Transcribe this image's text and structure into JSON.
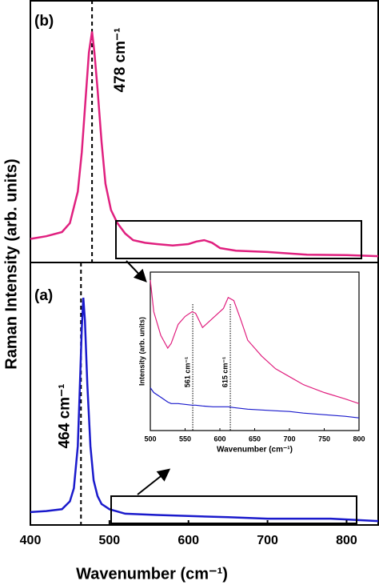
{
  "chart_data": [
    {
      "type": "line",
      "panel_label": "(b)",
      "x": [
        400,
        420,
        440,
        450,
        460,
        465,
        470,
        474,
        478,
        481,
        485,
        490,
        495,
        502,
        510,
        520,
        530,
        545,
        560,
        580,
        600,
        610,
        620,
        630,
        640,
        660,
        700,
        750,
        800,
        840
      ],
      "series": [
        {
          "color": "#e0207f",
          "values": [
            9,
            10,
            11.6,
            15,
            27,
            42,
            63,
            80,
            88,
            80,
            66,
            46,
            30,
            20,
            15,
            11,
            8.5,
            7.5,
            7,
            6.5,
            7,
            8,
            8.5,
            7.5,
            5.5,
            4.5,
            4,
            3,
            2.8,
            2.4
          ]
        }
      ],
      "xlim": [
        400,
        840
      ],
      "ylim": [
        0,
        100
      ],
      "annotations": [
        {
          "text": "478 cm⁻¹",
          "x": 478
        }
      ]
    },
    {
      "type": "line",
      "panel_label": "(a)",
      "x": [
        400,
        420,
        440,
        450,
        455,
        460,
        462,
        465,
        467,
        469,
        472,
        476,
        480,
        485,
        490,
        500,
        520,
        560,
        600,
        650,
        700,
        780,
        840
      ],
      "series": [
        {
          "color": "#1a1acc",
          "values": [
            4.9,
            5.3,
            6,
            9,
            14,
            30,
            47.6,
            75,
            86.6,
            78,
            53.7,
            30,
            17,
            11,
            8,
            6,
            4.3,
            3.8,
            3.4,
            3,
            2.4,
            2.4,
            1.5
          ]
        }
      ],
      "xlim": [
        400,
        840
      ],
      "ylim": [
        0,
        100
      ],
      "xticks": [
        400,
        500,
        600,
        700,
        800
      ],
      "xlabel": "Wavenumber (cm⁻¹)",
      "ylabel": "Raman Intensity (arb. units)",
      "annotations": [
        {
          "text": "464 cm⁻¹",
          "x": 464
        }
      ]
    },
    {
      "type": "line",
      "x": [
        500,
        505,
        515,
        525,
        530,
        540,
        550,
        560,
        565,
        575,
        590,
        605,
        612,
        620,
        630,
        640,
        660,
        680,
        700,
        720,
        750,
        780,
        800
      ],
      "series": [
        {
          "color": "#e0207f",
          "values": [
            95,
            75,
            60,
            52,
            55,
            67,
            72,
            75,
            74,
            65,
            71,
            77,
            84,
            82,
            70,
            57,
            47,
            39,
            34,
            29,
            24,
            20,
            17
          ]
        },
        {
          "color": "#1a1acc",
          "values": [
            27,
            24,
            21,
            18,
            17,
            17,
            16.5,
            16,
            16,
            15.5,
            15,
            15,
            15,
            14.5,
            14,
            13.5,
            13,
            12.5,
            12,
            11,
            10,
            9,
            8
          ]
        }
      ],
      "xlim": [
        500,
        800
      ],
      "ylim": [
        0,
        100
      ],
      "xticks": [
        500,
        550,
        600,
        650,
        700,
        750,
        800
      ],
      "xlabel": "Wavenumber (cm⁻¹)",
      "ylabel": "Intensity (arb. units)",
      "annotations": [
        {
          "text": "561 cm⁻¹",
          "x": 561
        },
        {
          "text": "615 cm⁻¹",
          "x": 615
        }
      ]
    }
  ]
}
